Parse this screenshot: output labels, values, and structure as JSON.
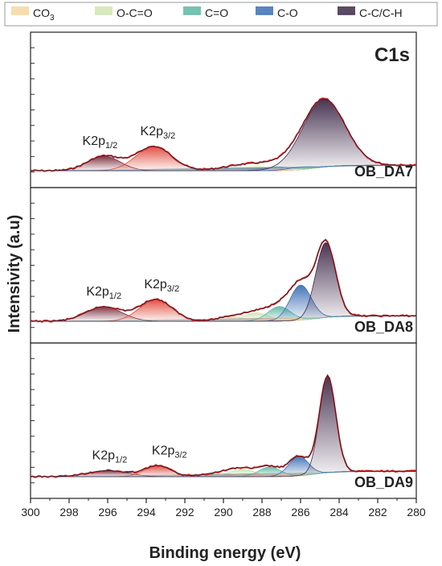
{
  "chart_data": {
    "type": "area",
    "title": "C1s",
    "xlabel": "Binding energy (eV)",
    "ylabel": "Intensivity (a.u)",
    "x_reversed": true,
    "xlim": [
      300,
      280
    ],
    "x_ticks": [
      300,
      298,
      296,
      294,
      292,
      290,
      288,
      286,
      284,
      282,
      280
    ],
    "legend": {
      "placement": "top",
      "entries": [
        {
          "label": "CO",
          "sub": "3",
          "color": "#f6d7a0"
        },
        {
          "label": "O-C=O",
          "sub": "",
          "color": "#cfe6b3"
        },
        {
          "label": "C=O",
          "sub": "",
          "color": "#5fb7a5"
        },
        {
          "label": "C-O",
          "sub": "",
          "color": "#3c6fb4"
        },
        {
          "label": "C-C/C-H",
          "sub": "",
          "color": "#3f2a4a"
        }
      ]
    },
    "panels": [
      {
        "name": "OB_DA7",
        "k_labels": [
          {
            "main": "K2p",
            "sub": "1/2",
            "x": 296.4
          },
          {
            "main": "K2p",
            "sub": "3/2",
            "x": 293.4
          }
        ],
        "components": [
          {
            "name": "K2p1/2",
            "center": 296.2,
            "fwhm": 2.0,
            "height": 0.12,
            "color": "#7a2a3a"
          },
          {
            "name": "K2p3/2",
            "center": 293.6,
            "fwhm": 2.2,
            "height": 0.2,
            "color": "#e0483a"
          },
          {
            "name": "CO3",
            "center": 289.4,
            "fwhm": 2.2,
            "height": 0.03,
            "color": "#f6d7a0"
          },
          {
            "name": "O-C=O",
            "center": 288.3,
            "fwhm": 2.0,
            "height": 0.035,
            "color": "#cfe6b3"
          },
          {
            "name": "C=O",
            "center": 287.2,
            "fwhm": 1.8,
            "height": 0.03,
            "color": "#5fb7a5"
          },
          {
            "name": "C-O",
            "center": 286.0,
            "fwhm": 1.6,
            "height": 0.02,
            "color": "#3c6fb4"
          },
          {
            "name": "C-C/C-H",
            "center": 284.8,
            "fwhm": 2.6,
            "height": 0.56,
            "color": "#3f2a4a"
          }
        ]
      },
      {
        "name": "OB_DA8",
        "k_labels": [
          {
            "main": "K2p",
            "sub": "1/2",
            "x": 296.2
          },
          {
            "main": "K2p",
            "sub": "3/2",
            "x": 293.2
          }
        ],
        "components": [
          {
            "name": "K2p1/2",
            "center": 296.2,
            "fwhm": 2.2,
            "height": 0.12,
            "color": "#7a2a3a"
          },
          {
            "name": "K2p3/2",
            "center": 293.5,
            "fwhm": 2.0,
            "height": 0.18,
            "color": "#e0483a"
          },
          {
            "name": "CO3",
            "center": 289.6,
            "fwhm": 1.6,
            "height": 0.04,
            "color": "#f6d7a0"
          },
          {
            "name": "O-C=O",
            "center": 288.3,
            "fwhm": 1.5,
            "height": 0.07,
            "color": "#cfe6b3"
          },
          {
            "name": "C=O",
            "center": 287.1,
            "fwhm": 1.4,
            "height": 0.12,
            "color": "#5fb7a5"
          },
          {
            "name": "C-O",
            "center": 286.0,
            "fwhm": 1.3,
            "height": 0.29,
            "color": "#3c6fb4"
          },
          {
            "name": "C-C/C-H",
            "center": 284.7,
            "fwhm": 1.2,
            "height": 0.62,
            "color": "#3f2a4a"
          }
        ]
      },
      {
        "name": "OB_DA9",
        "k_labels": [
          {
            "main": "K2p",
            "sub": "1/2",
            "x": 295.9
          },
          {
            "main": "K2p",
            "sub": "3/2",
            "x": 292.8
          }
        ],
        "components": [
          {
            "name": "K2p1/2",
            "center": 296.0,
            "fwhm": 2.4,
            "height": 0.05,
            "color": "#7a2a3a"
          },
          {
            "name": "K2p3/2",
            "center": 293.4,
            "fwhm": 1.6,
            "height": 0.09,
            "color": "#e0483a"
          },
          {
            "name": "CO3",
            "center": 290.2,
            "fwhm": 2.0,
            "height": 0.03,
            "color": "#f6d7a0"
          },
          {
            "name": "O-C=O",
            "center": 289.0,
            "fwhm": 1.6,
            "height": 0.06,
            "color": "#cfe6b3"
          },
          {
            "name": "C=O",
            "center": 287.6,
            "fwhm": 1.3,
            "height": 0.08,
            "color": "#5fb7a5"
          },
          {
            "name": "C-O",
            "center": 286.1,
            "fwhm": 1.2,
            "height": 0.16,
            "color": "#3c6fb4"
          },
          {
            "name": "C-C/C-H",
            "center": 284.6,
            "fwhm": 1.0,
            "height": 0.8,
            "color": "#3f2a4a"
          }
        ]
      }
    ]
  }
}
